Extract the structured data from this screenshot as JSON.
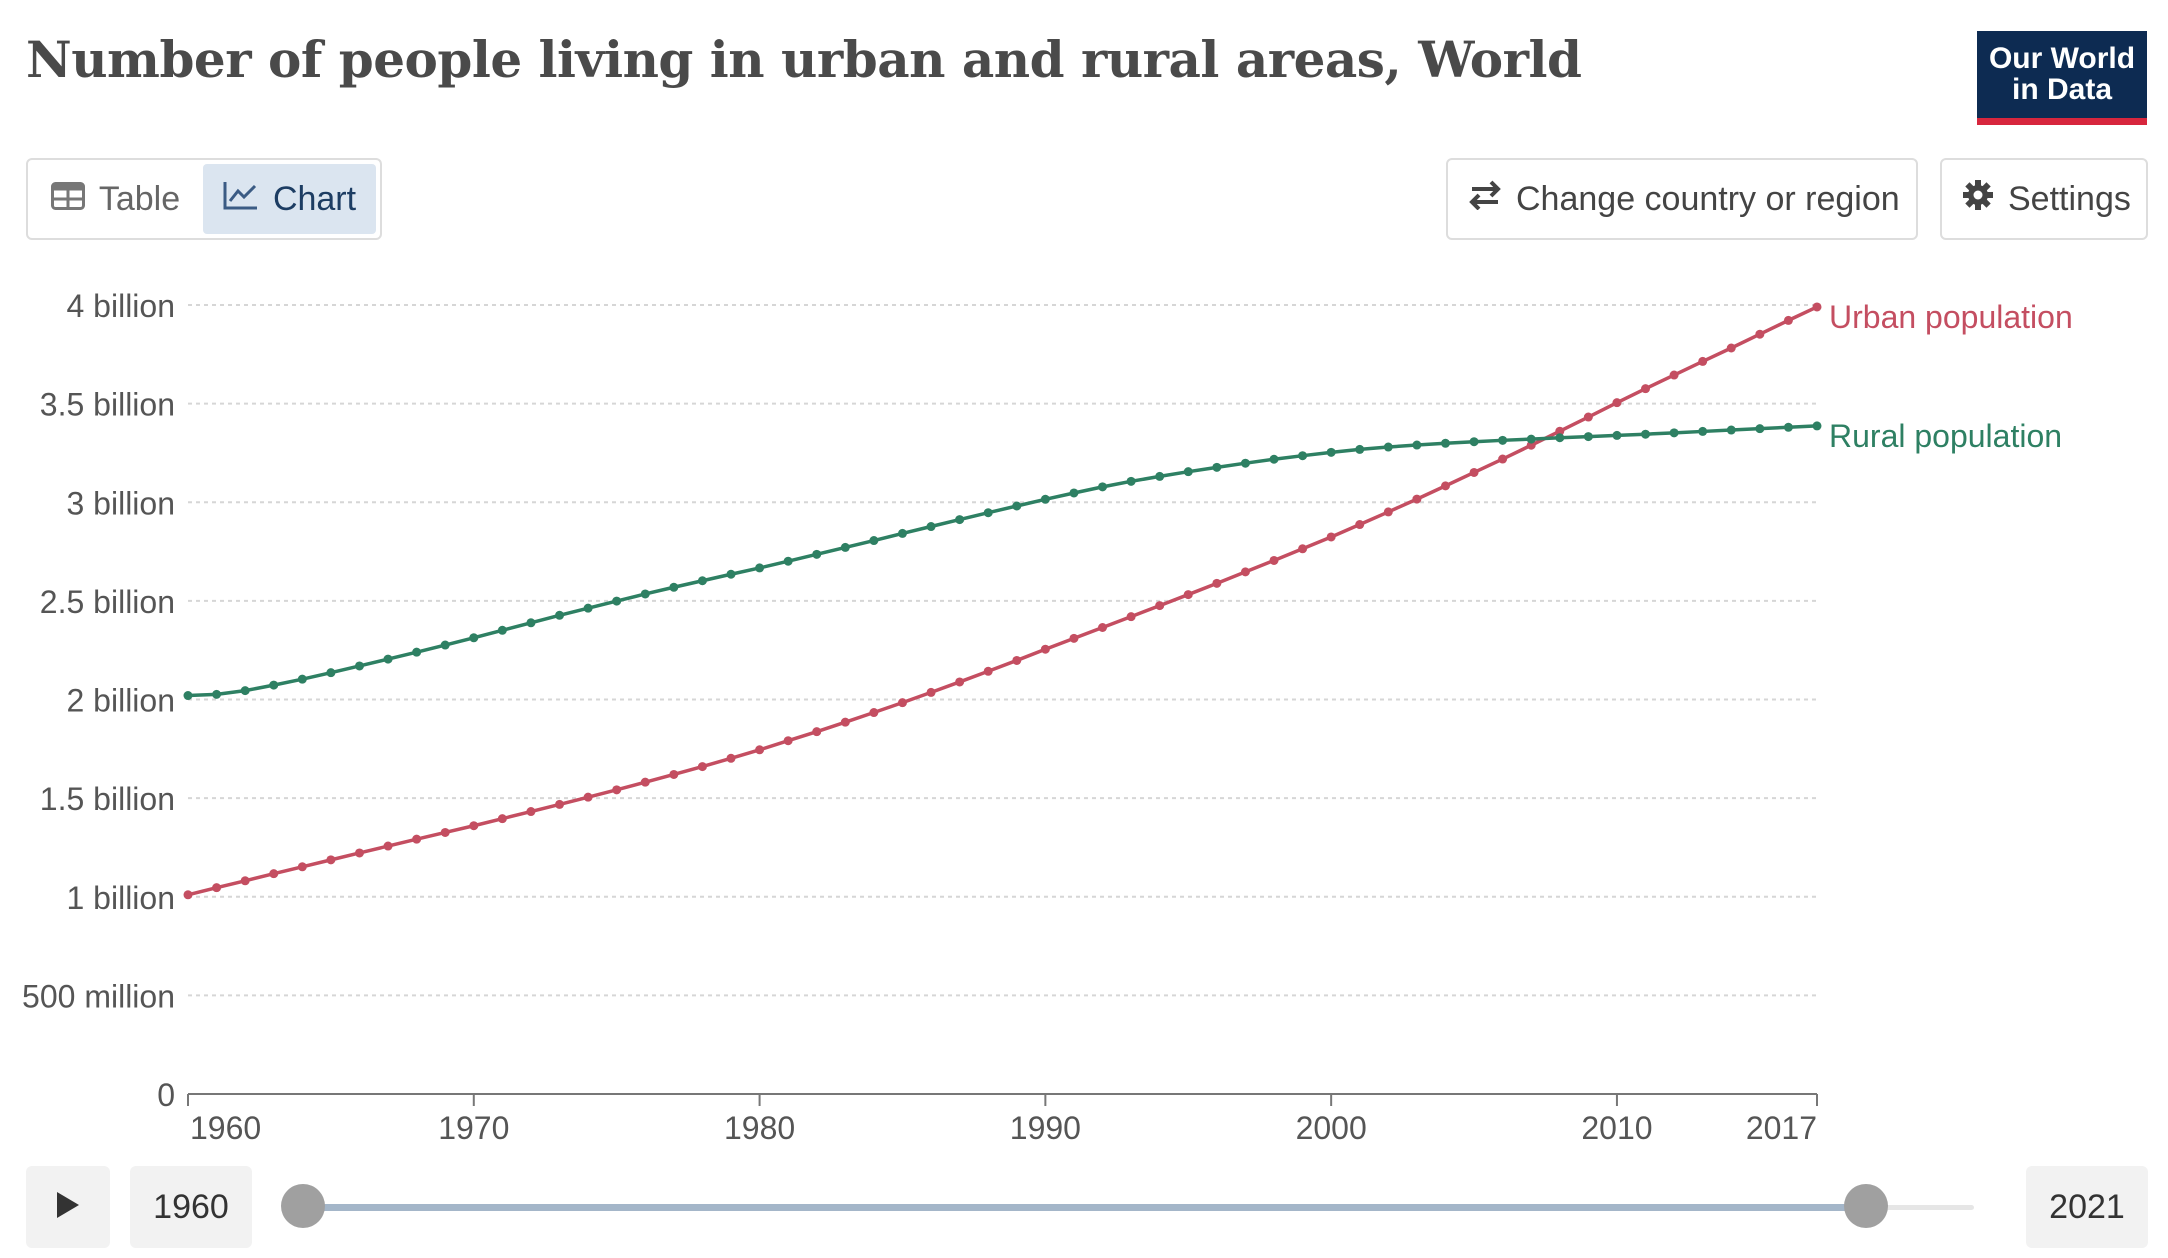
{
  "header": {
    "title": "Number of people living in urban and rural areas, World",
    "logo_line1": "Our World",
    "logo_line2": "in Data"
  },
  "tabs": [
    {
      "label": "Table",
      "icon": "table-icon",
      "active": false
    },
    {
      "label": "Chart",
      "icon": "line-chart-icon",
      "active": true
    }
  ],
  "controls": {
    "change_region_label": "Change country or region",
    "settings_label": "Settings"
  },
  "timeline": {
    "start_year": "1960",
    "end_year": "2021",
    "play_icon": "play-icon"
  },
  "colors": {
    "urban": "#c44e61",
    "rural": "#2e8063",
    "brand_navy": "#0d2b52",
    "brand_red": "#d7263d"
  },
  "chart_data": {
    "type": "line",
    "title": "Number of people living in urban and rural areas, World",
    "xlim": [
      1960,
      2017
    ],
    "ylim": [
      0,
      4100000000
    ],
    "x_ticks": [
      1960,
      1970,
      1980,
      1990,
      2000,
      2010,
      2017
    ],
    "x_tick_labels": [
      "1960",
      "1970",
      "1980",
      "1990",
      "2000",
      "2010",
      "2017"
    ],
    "y_ticks": [
      0,
      500000000,
      1000000000,
      1500000000,
      2000000000,
      2500000000,
      3000000000,
      3500000000,
      4000000000
    ],
    "y_tick_labels": [
      "0",
      "500 million",
      "1 billion",
      "1.5 billion",
      "2 billion",
      "2.5 billion",
      "3 billion",
      "3.5 billion",
      "4 billion"
    ],
    "grid": "horizontal dotted",
    "legend": "inline labels at line ends",
    "x": [
      1960,
      1961,
      1962,
      1963,
      1964,
      1965,
      1966,
      1967,
      1968,
      1969,
      1970,
      1971,
      1972,
      1973,
      1974,
      1975,
      1976,
      1977,
      1978,
      1979,
      1980,
      1981,
      1982,
      1983,
      1984,
      1985,
      1986,
      1987,
      1988,
      1989,
      1990,
      1991,
      1992,
      1993,
      1994,
      1995,
      1996,
      1997,
      1998,
      1999,
      2000,
      2001,
      2002,
      2003,
      2004,
      2005,
      2006,
      2007,
      2008,
      2009,
      2010,
      2011,
      2012,
      2013,
      2014,
      2015,
      2016,
      2017
    ],
    "series": [
      {
        "name": "Urban population",
        "values": [
          1010000000,
          1046000000,
          1081000000,
          1117000000,
          1152000000,
          1187000000,
          1222000000,
          1257000000,
          1292000000,
          1326000000,
          1360000000,
          1396000000,
          1432000000,
          1468000000,
          1505000000,
          1542000000,
          1581000000,
          1620000000,
          1660000000,
          1702000000,
          1745000000,
          1791000000,
          1837000000,
          1885000000,
          1934000000,
          1984000000,
          2036000000,
          2089000000,
          2143000000,
          2198000000,
          2255000000,
          2310000000,
          2365000000,
          2420000000,
          2476000000,
          2532000000,
          2589000000,
          2647000000,
          2705000000,
          2764000000,
          2824000000,
          2887000000,
          2951000000,
          3016000000,
          3083000000,
          3151000000,
          3219000000,
          3289000000,
          3360000000,
          3432000000,
          3505000000,
          3576000000,
          3645000000,
          3714000000,
          3782000000,
          3852000000,
          3922000000,
          3990000000
        ]
      },
      {
        "name": "Rural population",
        "values": [
          2020000000,
          2026000000,
          2045000000,
          2073000000,
          2103000000,
          2136000000,
          2170000000,
          2205000000,
          2240000000,
          2276000000,
          2313000000,
          2351000000,
          2389000000,
          2427000000,
          2463000000,
          2499000000,
          2535000000,
          2569000000,
          2602000000,
          2635000000,
          2667000000,
          2701000000,
          2736000000,
          2771000000,
          2806000000,
          2842000000,
          2877000000,
          2912000000,
          2947000000,
          2981000000,
          3015000000,
          3047000000,
          3078000000,
          3106000000,
          3131000000,
          3155000000,
          3177000000,
          3198000000,
          3218000000,
          3236000000,
          3253000000,
          3268000000,
          3280000000,
          3290000000,
          3299000000,
          3307000000,
          3314000000,
          3320000000,
          3327000000,
          3333000000,
          3339000000,
          3345000000,
          3352000000,
          3359000000,
          3366000000,
          3373000000,
          3380000000,
          3387000000
        ]
      }
    ]
  }
}
